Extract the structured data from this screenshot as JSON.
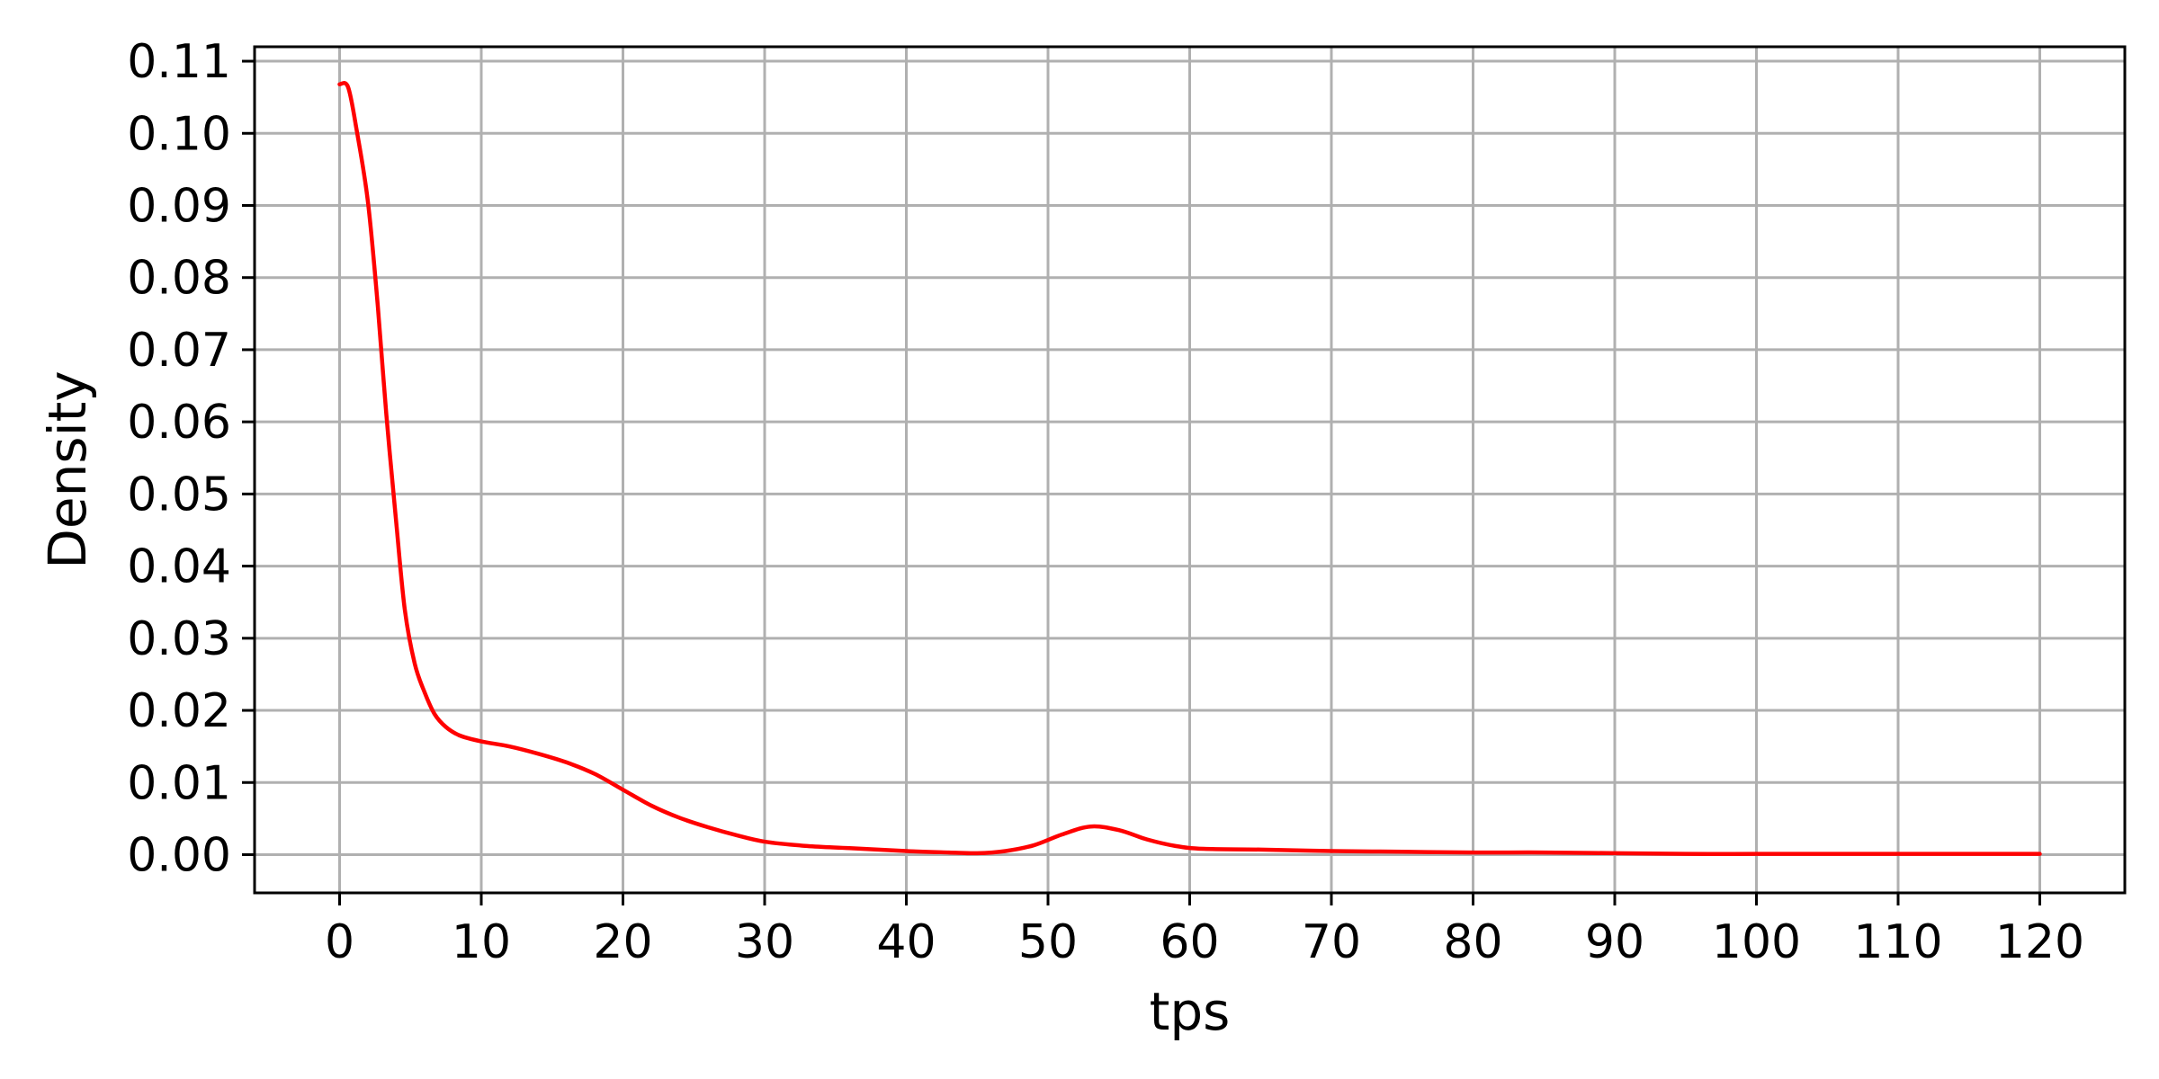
{
  "chart_data": {
    "type": "line",
    "xlabel": "tps",
    "ylabel": "Density",
    "xlim": [
      -6,
      126
    ],
    "ylim": [
      -0.0053,
      0.112
    ],
    "xticks": [
      "0",
      "10",
      "20",
      "30",
      "40",
      "50",
      "60",
      "70",
      "80",
      "90",
      "100",
      "110",
      "120"
    ],
    "yticks": [
      "0.00",
      "0.01",
      "0.02",
      "0.03",
      "0.04",
      "0.05",
      "0.06",
      "0.07",
      "0.08",
      "0.09",
      "0.10",
      "0.11"
    ],
    "grid": true,
    "colors": {
      "line": "#ff0000",
      "grid": "#b0b0b0",
      "axes": "#000000"
    },
    "series": [
      {
        "x": [
          0,
          0.6,
          1.2,
          2,
          2.7,
          3.3,
          4,
          4.6,
          5.3,
          6,
          6.7,
          7.5,
          8.5,
          10,
          12,
          14,
          16,
          18,
          20,
          22,
          24,
          26,
          28,
          30,
          33,
          36,
          40,
          43,
          45,
          47,
          49,
          51,
          53,
          55,
          57,
          59,
          61,
          65,
          70,
          75,
          80,
          85,
          90,
          95,
          100,
          105,
          110,
          115,
          120
        ],
        "y": [
          0.1068,
          0.1064,
          0.1005,
          0.0905,
          0.076,
          0.061,
          0.046,
          0.034,
          0.0265,
          0.0225,
          0.0195,
          0.0177,
          0.0165,
          0.0157,
          0.015,
          0.014,
          0.0128,
          0.0112,
          0.009,
          0.0068,
          0.0051,
          0.0038,
          0.0027,
          0.0018,
          0.0012,
          0.0009,
          0.0005,
          0.0003,
          0.0002,
          0.0005,
          0.0013,
          0.0028,
          0.0039,
          0.0034,
          0.0021,
          0.0012,
          0.0008,
          0.0007,
          0.0005,
          0.0004,
          0.0003,
          0.0003,
          0.0002,
          0.0001,
          0.0001,
          0.0001,
          0.0001,
          0.0001,
          0.0001
        ]
      }
    ]
  }
}
